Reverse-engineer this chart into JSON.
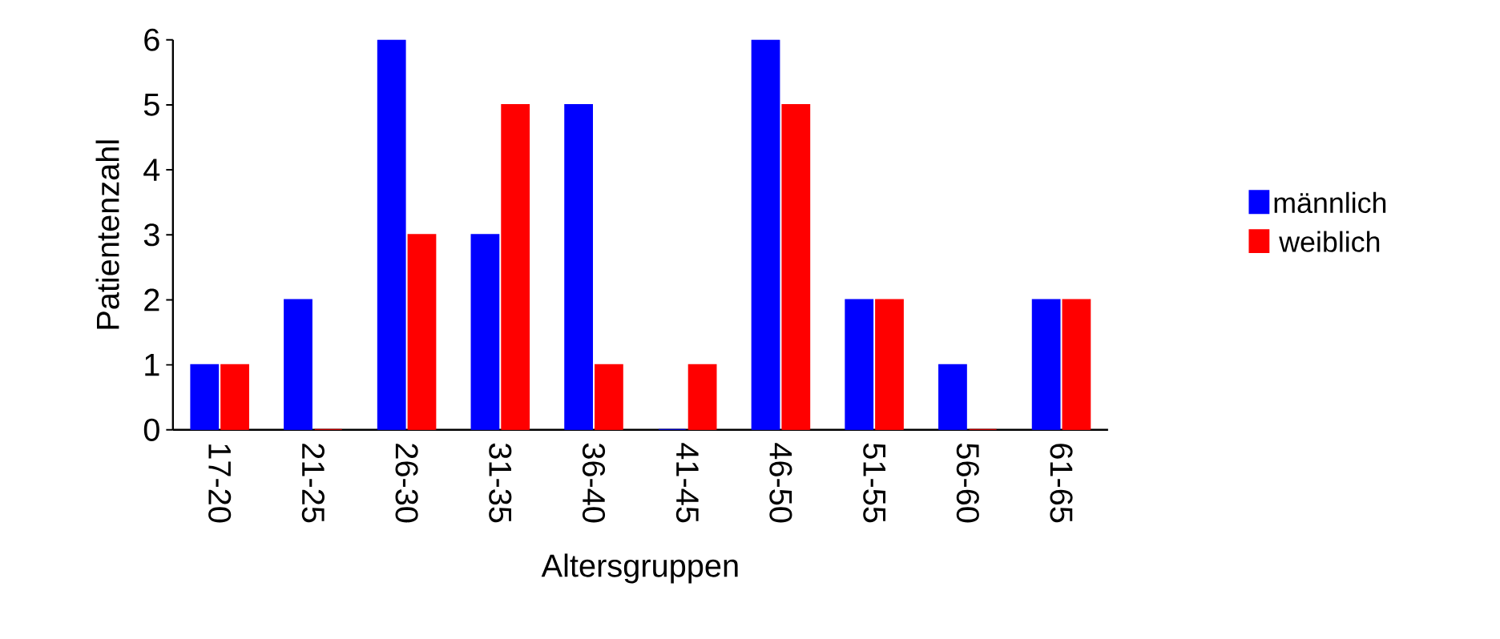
{
  "chart_data": {
    "type": "bar",
    "xlabel": "Altersgruppen",
    "ylabel": "Patientenzahl",
    "categories": [
      "17-20",
      "21-25",
      "26-30",
      "31-35",
      "36-40",
      "41-45",
      "46-50",
      "51-55",
      "56-60",
      "61-65"
    ],
    "series": [
      {
        "name": "männlich",
        "color": "#0000ff",
        "values": [
          1,
          2,
          6,
          3,
          5,
          0,
          6,
          2,
          1,
          2
        ]
      },
      {
        "name": "weiblich",
        "color": "#ff0000",
        "values": [
          1,
          0,
          3,
          5,
          1,
          1,
          5,
          2,
          0,
          2
        ]
      }
    ],
    "ylim": [
      0,
      6
    ],
    "yticks": [
      0,
      1,
      2,
      3,
      4,
      5,
      6
    ],
    "legend": "right",
    "grid": false
  }
}
